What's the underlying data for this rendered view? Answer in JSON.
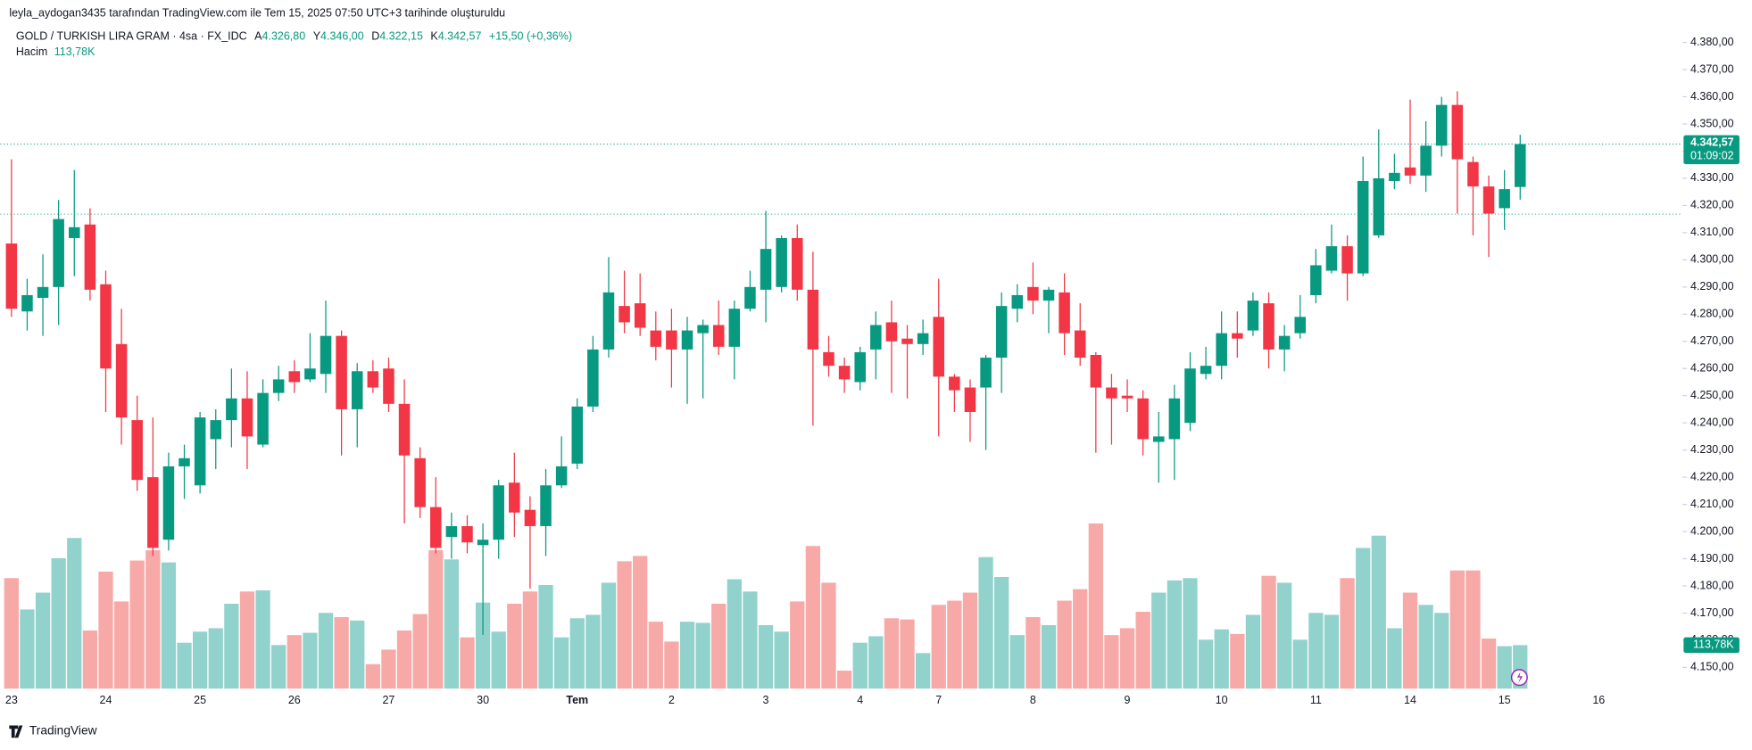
{
  "header": {
    "credit": "leyla_aydogan3435 tarafından TradingView.com ile Tem 15, 2025 07:50 UTC+3 tarihinde oluşturuldu",
    "footer": "TradingView"
  },
  "chart_data": {
    "type": "candlestick",
    "symbol": "GOLD / TURKISH LIRA GRAM · 4sa · FX_IDC",
    "legend_labels": {
      "open": "A",
      "high": "Y",
      "low": "D",
      "close": "K"
    },
    "last_labels": {
      "open": "4.326,80",
      "high": "4.346,00",
      "low": "4.322,15",
      "close": "4.342,57",
      "change": "+15,50 (+0,36%)"
    },
    "volume_title": "Hacim",
    "volume_label": "113,78K",
    "last_price_label": "4.342,57",
    "countdown": "01:09:02",
    "up_color": "#089981",
    "down_color": "#f23645",
    "up_volume_color": "#92d2cc",
    "down_volume_color": "#f7a9a7",
    "reference_line": 4316.8,
    "open": [
      4306,
      4281,
      4286,
      4290,
      4308,
      4313,
      4291,
      4269,
      4241,
      4220,
      4197,
      4224,
      4217,
      4234,
      4241,
      4249,
      4232,
      4251,
      4259,
      4256,
      4258,
      4272,
      4245,
      4259,
      4260,
      4247,
      4227,
      4209,
      4198,
      4202,
      4195,
      4197,
      4218,
      4208,
      4202,
      4217,
      4225,
      4246,
      4267,
      4283,
      4284,
      4274,
      4274,
      4267,
      4273,
      4276,
      4268,
      4282,
      4289,
      4290,
      4308,
      4289,
      4266,
      4261,
      4255,
      4267,
      4277,
      4271,
      4269,
      4279,
      4257,
      4253,
      4253,
      4264,
      4282,
      4290,
      4285,
      4288,
      4274,
      4265,
      4253,
      4250,
      4249,
      4233,
      4234,
      4240,
      4258,
      4261,
      4273,
      4274,
      4284,
      4267,
      4273,
      4287,
      4296,
      4305,
      4295,
      4309,
      4329,
      4334,
      4331,
      4342,
      4357,
      4336,
      4327,
      4319,
      4326.8
    ],
    "high": [
      4337,
      4293,
      4302,
      4322,
      4333,
      4319,
      4296,
      4282,
      4250,
      4242,
      4229,
      4232,
      4244,
      4245,
      4260,
      4259,
      4256,
      4261,
      4263,
      4273,
      4285,
      4274,
      4262,
      4263,
      4264,
      4256,
      4231,
      4220,
      4207,
      4206,
      4203,
      4219,
      4229,
      4213,
      4223,
      4235,
      4249,
      4272,
      4301,
      4296,
      4295,
      4281,
      4282,
      4279,
      4278,
      4285,
      4285,
      4296,
      4318,
      4309,
      4313,
      4303,
      4272,
      4264,
      4268,
      4281,
      4285,
      4276,
      4278,
      4293,
      4258,
      4256,
      4265,
      4288,
      4291,
      4299,
      4290,
      4295,
      4284,
      4266,
      4258,
      4256,
      4252,
      4244,
      4254,
      4266,
      4268,
      4281,
      4281,
      4288,
      4288,
      4276,
      4287,
      4304,
      4313,
      4309,
      4338,
      4348,
      4339,
      4359,
      4351,
      4360,
      4362,
      4338,
      4331,
      4333,
      4346
    ],
    "low": [
      4279,
      4274,
      4272,
      4276,
      4294,
      4285,
      4244,
      4232,
      4215,
      4191,
      4193,
      4212,
      4214,
      4223,
      4231,
      4223,
      4231,
      4248,
      4251,
      4255,
      4251,
      4228,
      4231,
      4251,
      4244,
      4203,
      4205,
      4192,
      4190,
      4192,
      4162,
      4190,
      4198,
      4179,
      4191,
      4216,
      4223,
      4244,
      4264,
      4273,
      4272,
      4263,
      4253,
      4247,
      4249,
      4265,
      4256,
      4281,
      4277,
      4288,
      4285,
      4239,
      4257,
      4251,
      4252,
      4256,
      4251,
      4249,
      4265,
      4235,
      4244,
      4233,
      4230,
      4251,
      4277,
      4280,
      4273,
      4265,
      4261,
      4229,
      4232,
      4244,
      4228,
      4218,
      4219,
      4237,
      4256,
      4256,
      4264,
      4272,
      4260,
      4259,
      4271,
      4284,
      4295,
      4285,
      4294,
      4308,
      4326,
      4328,
      4325,
      4338,
      4317,
      4309,
      4301,
      4311,
      4322.15
    ],
    "close": [
      4282,
      4287,
      4290,
      4315,
      4312,
      4289,
      4260,
      4242,
      4219,
      4194,
      4224,
      4227,
      4242,
      4241,
      4249,
      4235,
      4251,
      4256,
      4255,
      4260,
      4272,
      4245,
      4259,
      4253,
      4247,
      4228,
      4209,
      4194,
      4202,
      4196,
      4197,
      4217,
      4207,
      4202,
      4217,
      4224,
      4246,
      4267,
      4288,
      4277,
      4275,
      4268,
      4267,
      4274,
      4276,
      4268,
      4282,
      4290,
      4304,
      4308,
      4289,
      4267,
      4261,
      4256,
      4266,
      4276,
      4270,
      4269,
      4273,
      4257,
      4252,
      4244,
      4264,
      4283,
      4287,
      4285,
      4289,
      4273,
      4264,
      4253,
      4249,
      4249,
      4234,
      4235,
      4249,
      4260,
      4261,
      4273,
      4271,
      4285,
      4267,
      4272,
      4279,
      4298,
      4305,
      4295,
      4329,
      4330,
      4332,
      4331,
      4342,
      4357,
      4337,
      4327,
      4317,
      4326,
      4342.57
    ],
    "volume": [
      289,
      207,
      251,
      341,
      394,
      152,
      306,
      228,
      335,
      362,
      330,
      120,
      149,
      158,
      222,
      254,
      257,
      114,
      140,
      146,
      198,
      187,
      178,
      64,
      102,
      152,
      195,
      362,
      338,
      134,
      225,
      149,
      222,
      254,
      271,
      134,
      184,
      193,
      277,
      333,
      347,
      175,
      123,
      175,
      172,
      222,
      286,
      254,
      166,
      149,
      228,
      373,
      277,
      47,
      120,
      137,
      184,
      181,
      93,
      219,
      230,
      251,
      344,
      292,
      140,
      187,
      166,
      230,
      260,
      432,
      140,
      158,
      201,
      251,
      283,
      289,
      128,
      155,
      143,
      193,
      295,
      277,
      128,
      198,
      193,
      289,
      368,
      400,
      158,
      251,
      219,
      198,
      309,
      309,
      131,
      111,
      113.78
    ],
    "xticks": [
      {
        "value": 0,
        "label": "23"
      },
      {
        "value": 6,
        "label": "24"
      },
      {
        "value": 12,
        "label": "25"
      },
      {
        "value": 18,
        "label": "26"
      },
      {
        "value": 24,
        "label": "27"
      },
      {
        "value": 30,
        "label": "30"
      },
      {
        "value": 36,
        "label": "Tem"
      },
      {
        "value": 42,
        "label": "2"
      },
      {
        "value": 48,
        "label": "3"
      },
      {
        "value": 54,
        "label": "4"
      },
      {
        "value": 59,
        "label": "7"
      },
      {
        "value": 65,
        "label": "8"
      },
      {
        "value": 71,
        "label": "9"
      },
      {
        "value": 77,
        "label": "10"
      },
      {
        "value": 83,
        "label": "11"
      },
      {
        "value": 89,
        "label": "14"
      },
      {
        "value": 95,
        "label": "15"
      },
      {
        "value": 101,
        "label": "16"
      }
    ],
    "ylim": [
      4142.2,
      4387.4
    ],
    "yticks": [
      {
        "value": 4380,
        "label": "4.380,00"
      },
      {
        "value": 4370,
        "label": "4.370,00"
      },
      {
        "value": 4360,
        "label": "4.360,00"
      },
      {
        "value": 4350,
        "label": "4.350,00"
      },
      {
        "value": 4340,
        "label": "4.340,00"
      },
      {
        "value": 4330,
        "label": "4.330,00"
      },
      {
        "value": 4320,
        "label": "4.320,00"
      },
      {
        "value": 4310,
        "label": "4.310,00"
      },
      {
        "value": 4300,
        "label": "4.300,00"
      },
      {
        "value": 4290,
        "label": "4.290,00"
      },
      {
        "value": 4280,
        "label": "4.280,00"
      },
      {
        "value": 4270,
        "label": "4.270,00"
      },
      {
        "value": 4260,
        "label": "4.260,00"
      },
      {
        "value": 4250,
        "label": "4.250,00"
      },
      {
        "value": 4240,
        "label": "4.240,00"
      },
      {
        "value": 4230,
        "label": "4.230,00"
      },
      {
        "value": 4220,
        "label": "4.220,00"
      },
      {
        "value": 4210,
        "label": "4.210,00"
      },
      {
        "value": 4200,
        "label": "4.200,00"
      },
      {
        "value": 4190,
        "label": "4.190,00"
      },
      {
        "value": 4180,
        "label": "4.180,00"
      },
      {
        "value": 4170,
        "label": "4.170,00"
      },
      {
        "value": 4160,
        "label": "4.160,00"
      },
      {
        "value": 4150,
        "label": "4.150,00"
      }
    ]
  }
}
